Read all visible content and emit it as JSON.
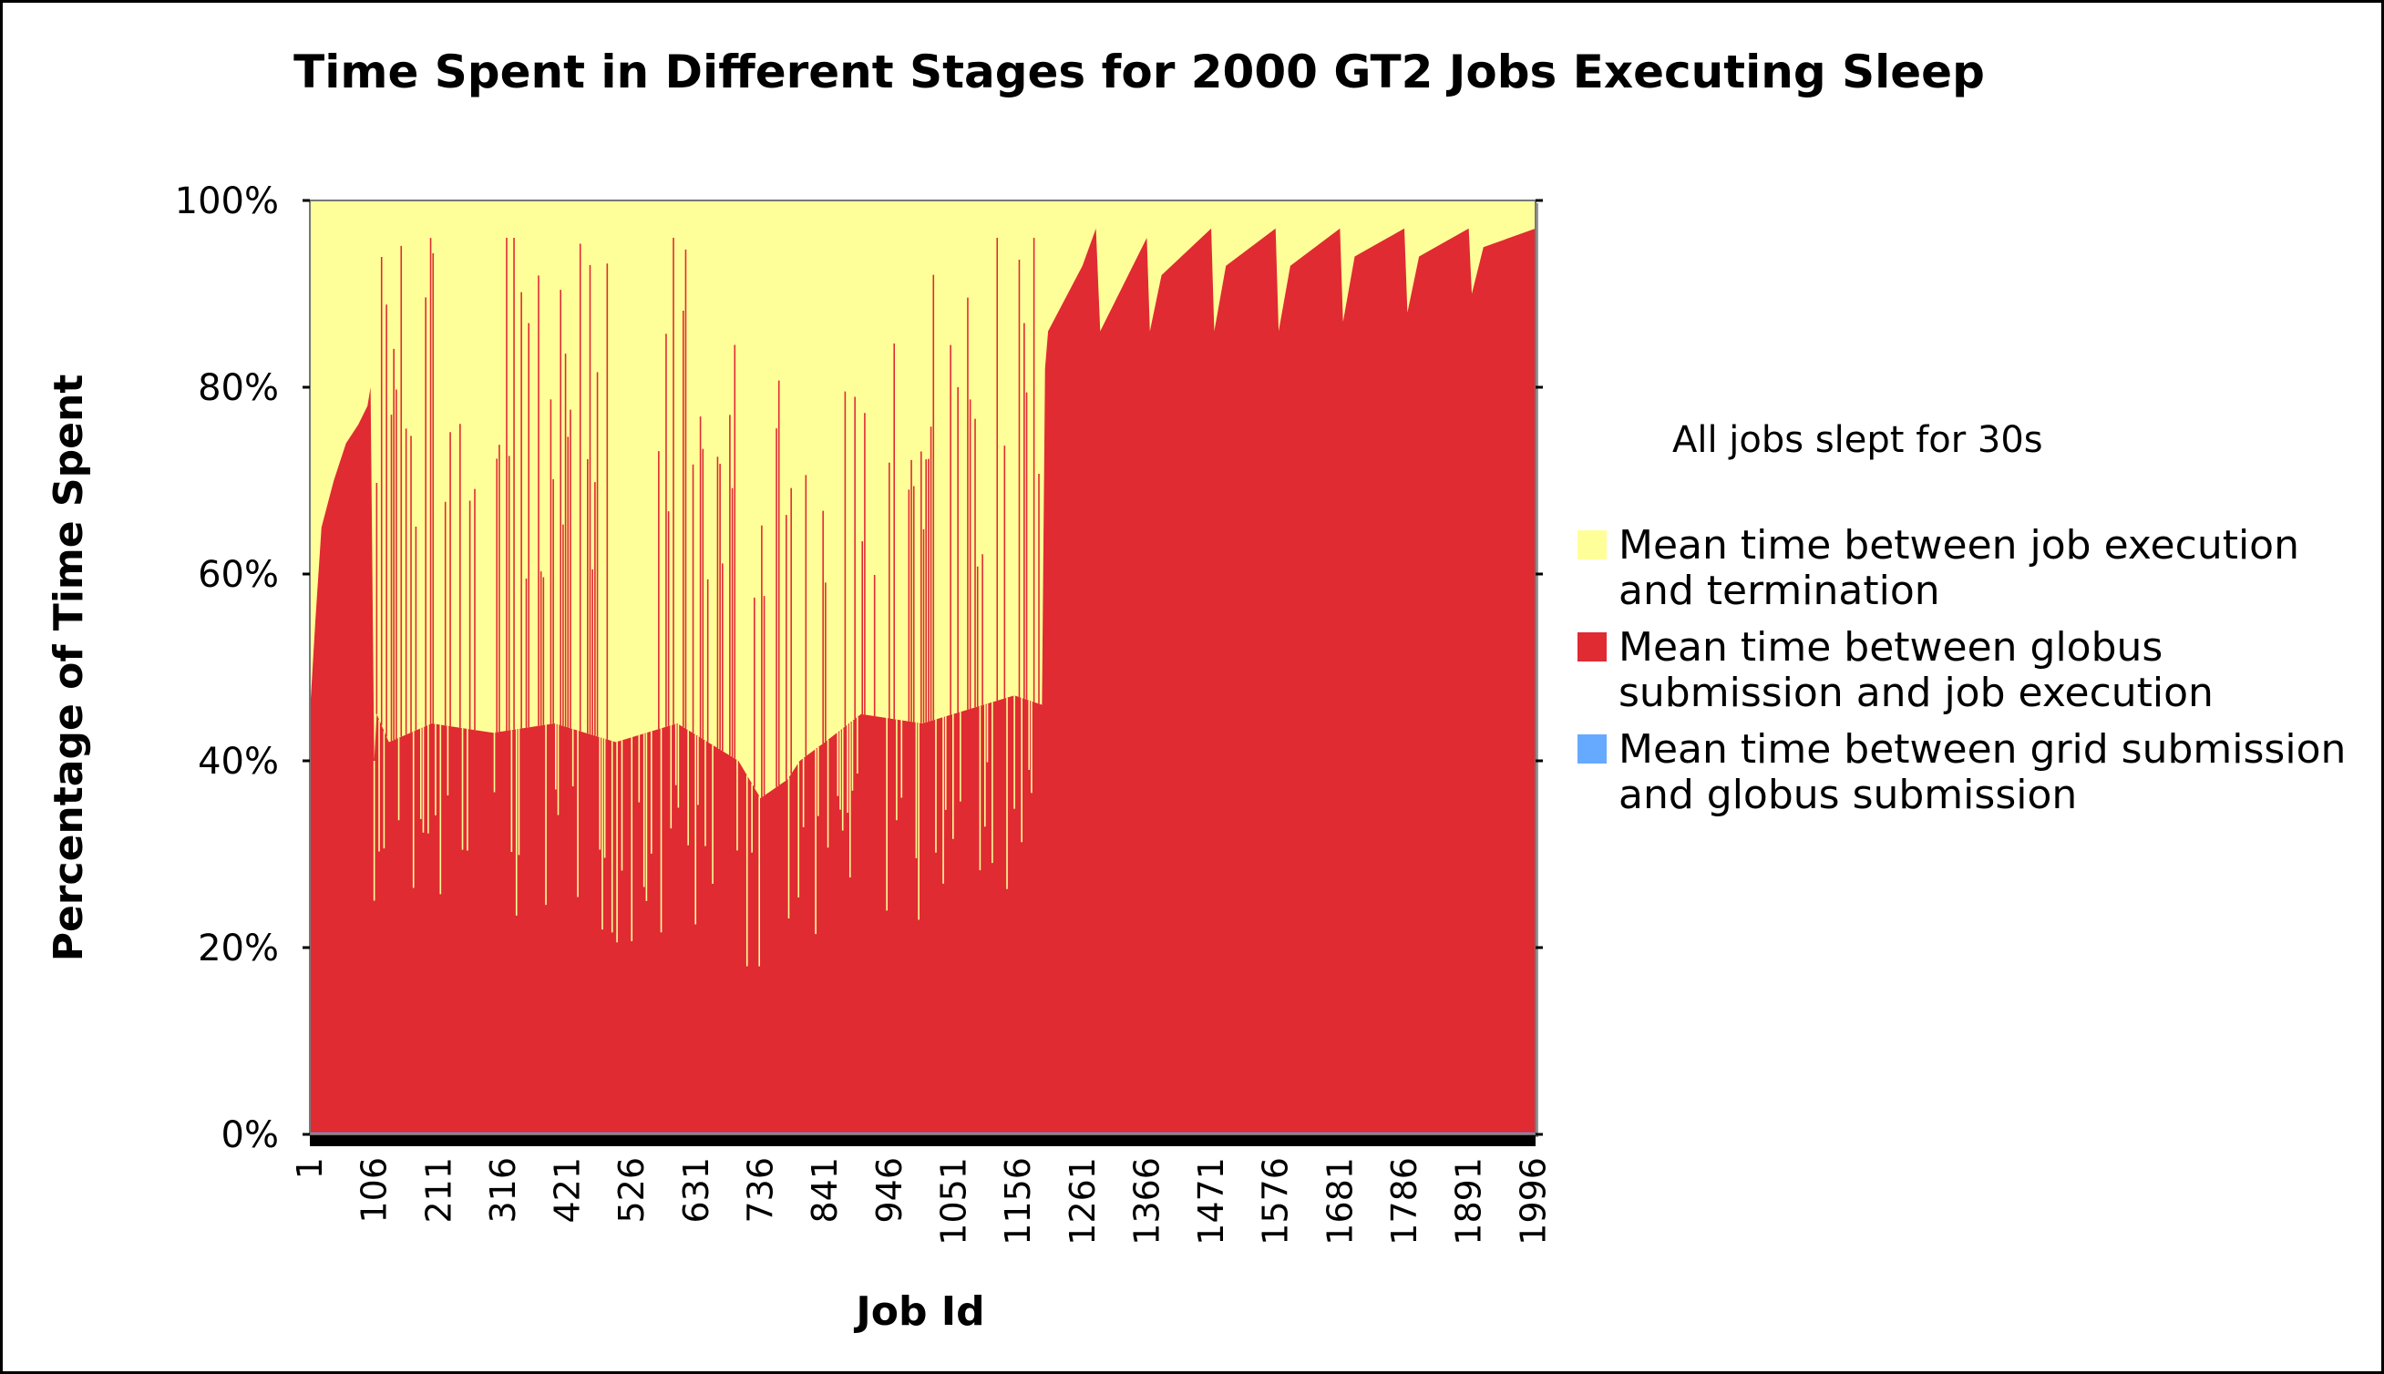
{
  "chart_data": {
    "type": "area",
    "title": "Time Spent in Different Stages for 2000 GT2 Jobs Executing Sleep",
    "xlabel": "Job Id",
    "ylabel": "Percentage of Time Spent",
    "x_range": [
      1,
      2000
    ],
    "ylim": [
      0,
      100
    ],
    "y_ticks": [
      "0%",
      "20%",
      "40%",
      "60%",
      "80%",
      "100%"
    ],
    "x_ticks": [
      "1",
      "106",
      "211",
      "316",
      "421",
      "526",
      "631",
      "736",
      "841",
      "946",
      "1051",
      "1156",
      "1261",
      "1366",
      "1471",
      "1576",
      "1681",
      "1786",
      "1891",
      "1996"
    ],
    "annotation": "All jobs slept for 30s",
    "legend_position": "right",
    "colors": {
      "termination": "#ffff99",
      "execution": "#e02b32",
      "grid": "#66aaff"
    },
    "series": [
      {
        "name": "Mean time between job execution and termination",
        "key": "termination",
        "description_stack": "top"
      },
      {
        "name": "Mean time between globus submission and job execution",
        "key": "execution",
        "x": [
          1,
          10,
          20,
          40,
          60,
          80,
          95,
          100,
          106,
          110,
          130,
          200,
          300,
          400,
          500,
          600,
          700,
          736,
          780,
          800,
          841,
          900,
          1000,
          1100,
          1150,
          1195,
          1200,
          1205,
          1261,
          1283,
          1290,
          1366,
          1371,
          1390,
          1471,
          1476,
          1495,
          1576,
          1581,
          1600,
          1681,
          1686,
          1705,
          1786,
          1791,
          1810,
          1891,
          1896,
          1915,
          2000
        ],
        "values": [
          45,
          55,
          65,
          70,
          74,
          76,
          78,
          80,
          40,
          45,
          42,
          44,
          43,
          44,
          42,
          44,
          40,
          36,
          38,
          40,
          42,
          45,
          44,
          46,
          47,
          46,
          82,
          86,
          93,
          97,
          86,
          96,
          86,
          92,
          97,
          86,
          93,
          97,
          86,
          93,
          97,
          87,
          94,
          97,
          88,
          94,
          97,
          90,
          95,
          97
        ]
      },
      {
        "name": "Mean time between grid submission and globus submission",
        "key": "grid",
        "values_constant": 0.3
      }
    ]
  }
}
